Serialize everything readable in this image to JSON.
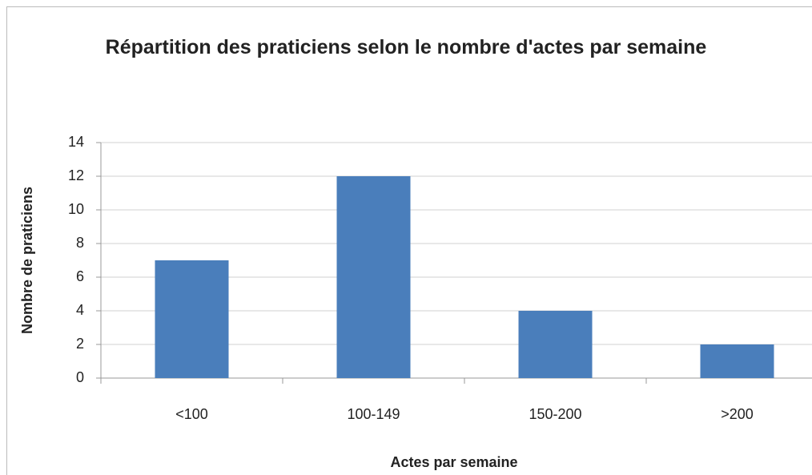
{
  "chart_data": {
    "type": "bar",
    "title": "Répartition des praticiens selon le nombre d'actes par semaine",
    "x_label": "Actes par semaine",
    "y_label": "Nombre de praticiens",
    "categories": [
      "<100",
      "100-149",
      "150-200",
      ">200"
    ],
    "values": [
      7,
      12,
      4,
      2
    ],
    "color": "#4a7ebb",
    "ylim": [
      0,
      14
    ],
    "yticks": [
      0,
      2,
      4,
      6,
      8,
      10,
      12,
      14
    ],
    "grid": true
  }
}
